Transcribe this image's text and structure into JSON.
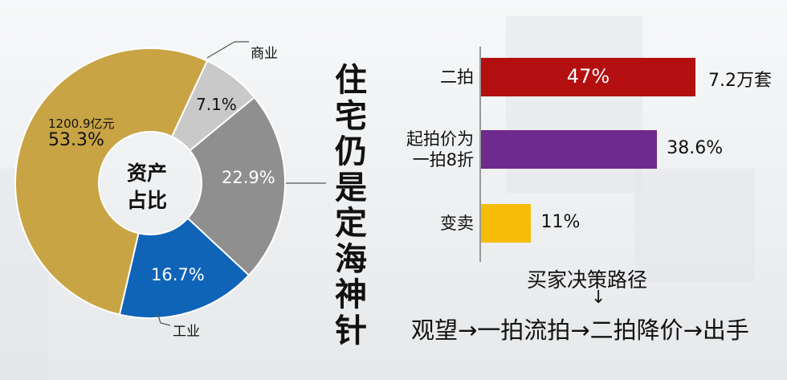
{
  "chart_data": [
    {
      "type": "pie",
      "variant": "donut",
      "center_label": [
        "资产",
        "占比"
      ],
      "slices": [
        {
          "name": "商业",
          "value": 7.1,
          "label": "7.1%",
          "color": "#c9c9c9"
        },
        {
          "name": "",
          "value": 22.9,
          "label": "22.9%",
          "color": "#8f8f8f"
        },
        {
          "name": "工业",
          "value": 16.7,
          "label": "16.7%",
          "color": "#0f64b8"
        },
        {
          "name": "",
          "value": 53.3,
          "label": "53.3%",
          "sublabel": "1200.9亿元",
          "color": "#c9a445"
        }
      ]
    },
    {
      "type": "bar",
      "orientation": "horizontal",
      "categories": [
        "二拍",
        "起拍价为一拍8折",
        "变卖"
      ],
      "category_lines": [
        [
          "二拍"
        ],
        [
          "起拍价为",
          "一拍8折"
        ],
        [
          "变卖"
        ]
      ],
      "values": [
        47,
        38.6,
        11
      ],
      "value_labels": [
        "47%",
        "38.6%",
        "11%"
      ],
      "extra_labels": [
        "7.2万套",
        "",
        ""
      ],
      "colors": [
        "#b30f10",
        "#6e2a8c",
        "#f5bd0a"
      ],
      "xlim": [
        0,
        100
      ]
    }
  ],
  "side_title": "住宅仍是定海神针",
  "decision": {
    "title": "买家决策路径",
    "arrow": "↓",
    "path": "观望→一拍流拍→二拍降价→出手"
  }
}
